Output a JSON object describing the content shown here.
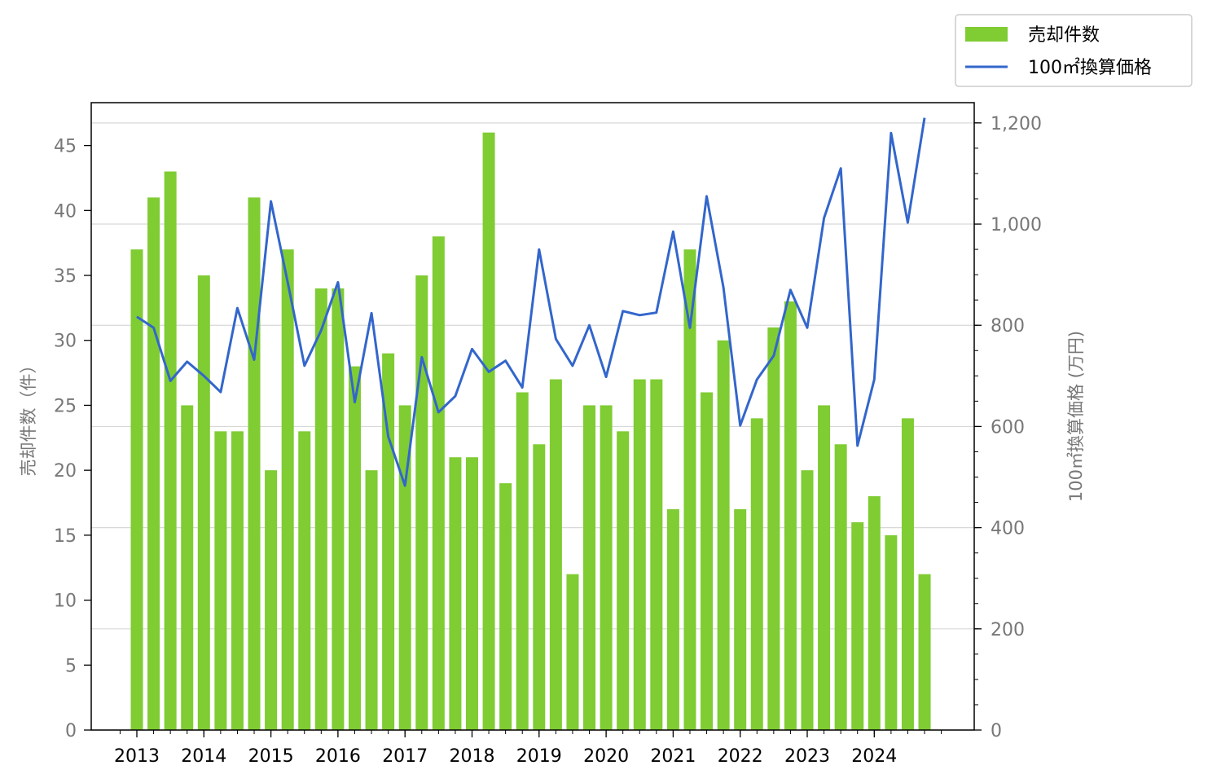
{
  "chart_data": {
    "type": "bar+line",
    "x_ticks": [
      "2013",
      "2014",
      "2015",
      "2016",
      "2017",
      "2018",
      "2019",
      "2020",
      "2021",
      "2022",
      "2023",
      "2024"
    ],
    "left_axis": {
      "label": "売却件数（件）",
      "ylim": [
        0,
        48.3
      ],
      "ticks": [
        "0",
        "5",
        "10",
        "15",
        "20",
        "25",
        "30",
        "35",
        "40",
        "45"
      ],
      "tick_values": [
        0,
        5,
        10,
        15,
        20,
        25,
        30,
        35,
        40,
        45
      ]
    },
    "right_axis": {
      "label": "100㎡換算価格 (万円)",
      "ylim": [
        0,
        1240
      ],
      "ticks": [
        "0",
        "200",
        "400",
        "600",
        "800",
        "1,000",
        "1,200"
      ],
      "tick_values": [
        0,
        200,
        400,
        600,
        800,
        1000,
        1200
      ]
    },
    "grid": "horizontal, right axis",
    "legend_position": "top-right (outside)",
    "series": [
      {
        "name": "売却件数",
        "type": "bar",
        "axis": "left",
        "color": "#7fcc33",
        "x": [
          2013.0,
          2013.25,
          2013.5,
          2013.75,
          2014.0,
          2014.25,
          2014.5,
          2014.75,
          2015.0,
          2015.25,
          2015.5,
          2015.75,
          2016.0,
          2016.25,
          2016.5,
          2016.75,
          2017.0,
          2017.25,
          2017.5,
          2017.75,
          2018.0,
          2018.25,
          2018.5,
          2018.75,
          2019.0,
          2019.25,
          2019.5,
          2019.75,
          2020.0,
          2020.25,
          2020.5,
          2020.75,
          2021.0,
          2021.25,
          2021.5,
          2021.75,
          2022.0,
          2022.25,
          2022.5,
          2022.75,
          2023.0,
          2023.25,
          2023.5,
          2023.75,
          2024.0,
          2024.25,
          2024.5,
          2024.75
        ],
        "values": [
          37,
          41,
          43,
          25,
          35,
          23,
          23,
          41,
          20,
          37,
          23,
          34,
          34,
          28,
          20,
          29,
          25,
          35,
          38,
          21,
          21,
          46,
          19,
          26,
          22,
          27,
          12,
          25,
          25,
          23,
          27,
          27,
          17,
          37,
          26,
          30,
          17,
          24,
          31,
          33,
          20,
          25,
          22,
          16,
          18,
          15,
          24,
          12
        ]
      },
      {
        "name": "100㎡換算価格",
        "type": "line",
        "axis": "right",
        "color": "#3366cc",
        "x": [
          2013.0,
          2013.25,
          2013.5,
          2013.75,
          2014.0,
          2014.25,
          2014.5,
          2014.75,
          2015.0,
          2015.25,
          2015.5,
          2015.75,
          2016.0,
          2016.25,
          2016.5,
          2016.75,
          2017.0,
          2017.25,
          2017.5,
          2017.75,
          2018.0,
          2018.25,
          2018.5,
          2018.75,
          2019.0,
          2019.25,
          2019.5,
          2019.75,
          2020.0,
          2020.25,
          2020.5,
          2020.75,
          2021.0,
          2021.25,
          2021.5,
          2021.75,
          2022.0,
          2022.25,
          2022.5,
          2022.75,
          2023.0,
          2023.25,
          2023.5,
          2023.75,
          2024.0,
          2024.25,
          2024.5,
          2024.75
        ],
        "values": [
          817,
          795,
          690,
          728,
          700,
          668,
          834,
          732,
          1045,
          885,
          720,
          790,
          885,
          648,
          824,
          580,
          483,
          737,
          628,
          660,
          753,
          708,
          730,
          677,
          950,
          773,
          720,
          800,
          698,
          828,
          820,
          825,
          985,
          795,
          1055,
          875,
          602,
          693,
          740,
          870,
          795,
          1012,
          1110,
          562,
          693,
          1180,
          1003,
          1210
        ]
      }
    ]
  }
}
